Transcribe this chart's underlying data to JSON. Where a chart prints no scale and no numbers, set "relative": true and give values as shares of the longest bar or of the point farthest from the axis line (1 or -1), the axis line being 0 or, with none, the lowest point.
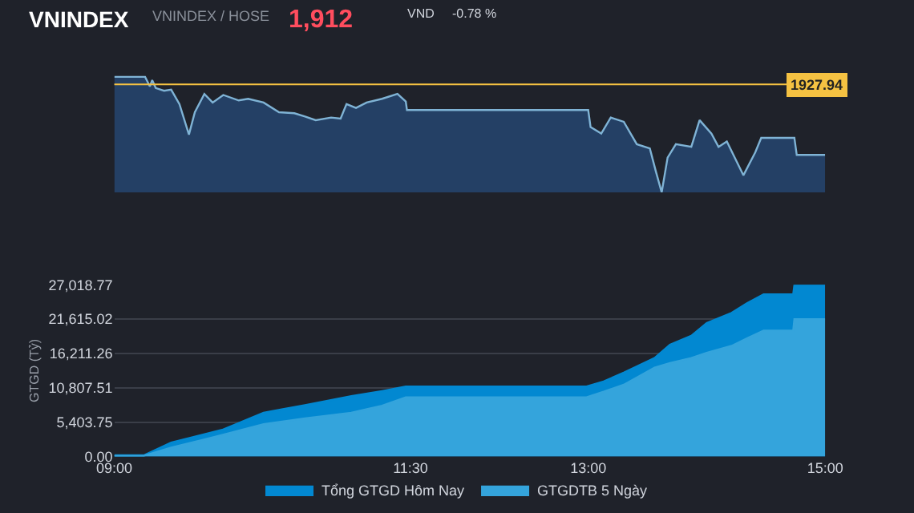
{
  "chart_data": [
    {
      "type": "area",
      "title": "VNINDEX",
      "subtitle": "VNINDEX / HOSE",
      "annotations": [
        "1,912",
        "VND",
        "-0.78 %",
        "1927.94"
      ],
      "relative": true,
      "tick_labels": false,
      "xlim": [
        9,
        15
      ],
      "x": [
        9.0,
        9.26,
        9.3,
        9.32,
        9.35,
        9.42,
        9.48,
        9.55,
        9.63,
        9.68,
        9.76,
        9.83,
        9.92,
        10.05,
        10.13,
        10.26,
        10.39,
        10.52,
        10.61,
        10.7,
        10.83,
        10.91,
        10.96,
        11.04,
        11.13,
        11.26,
        11.39,
        11.46,
        11.47,
        13.0,
        13.02,
        13.11,
        13.19,
        13.3,
        13.41,
        13.52,
        13.57,
        13.62,
        13.67,
        13.74,
        13.87,
        13.94,
        14.04,
        14.1,
        14.17,
        14.31,
        14.41,
        14.46,
        14.74,
        14.76,
        15.0
      ],
      "color": "#7fb3d5",
      "values": [
        1.0,
        1.0,
        0.917,
        0.972,
        0.903,
        0.88,
        0.889,
        0.764,
        0.5,
        0.694,
        0.852,
        0.778,
        0.843,
        0.796,
        0.81,
        0.778,
        0.694,
        0.685,
        0.657,
        0.625,
        0.648,
        0.639,
        0.764,
        0.731,
        0.778,
        0.81,
        0.852,
        0.787,
        0.713,
        0.713,
        0.565,
        0.509,
        0.648,
        0.611,
        0.417,
        0.38,
        0.185,
        0.0,
        0.301,
        0.417,
        0.394,
        0.625,
        0.509,
        0.394,
        0.44,
        0.148,
        0.347,
        0.472,
        0.472,
        0.324,
        0.324
      ],
      "ref_lines": [
        {
          "axis": "y",
          "value": 0.935,
          "color": "#f5c242"
        }
      ]
    },
    {
      "type": "area",
      "ylabel": "GTGD (Tỷ)",
      "xlim": [
        9,
        15
      ],
      "ylim": [
        0,
        27018.77
      ],
      "grid": "y",
      "legend": "bottom",
      "xticks": [
        {
          "value": 9,
          "label": "09:00"
        },
        {
          "value": 11.5,
          "label": "11:30"
        },
        {
          "value": 13,
          "label": "13:00"
        },
        {
          "value": 15,
          "label": "15:00"
        }
      ],
      "yticks": [
        {
          "value": 0,
          "label": "0.00"
        },
        {
          "value": 5403.75,
          "label": "5,403.75"
        },
        {
          "value": 10807.51,
          "label": "10,807.51"
        },
        {
          "value": 16211.26,
          "label": "16,211.26"
        },
        {
          "value": 21615.02,
          "label": "21,615.02"
        },
        {
          "value": 27018.77,
          "label": "27,018.77"
        }
      ],
      "x": [
        9.0,
        9.25,
        9.26,
        9.48,
        9.91,
        10.26,
        10.61,
        11.0,
        11.26,
        11.46,
        12.98,
        13.13,
        13.3,
        13.56,
        13.69,
        13.87,
        14.0,
        14.21,
        14.34,
        14.48,
        14.73,
        14.74,
        15.0
      ],
      "series": [
        {
          "name": "Tổng GTGD Hôm Nay",
          "color": "#0288d1",
          "values": [
            200,
            200,
            300,
            2200,
            4200,
            6900,
            8100,
            9500,
            10300,
            11000,
            11000,
            11800,
            13200,
            15500,
            17600,
            19000,
            21000,
            22600,
            24100,
            25500,
            25500,
            27000,
            27000
          ]
        },
        {
          "name": "GTGDTB 5 Ngày",
          "color": "#34a4dc",
          "values": [
            100,
            100,
            200,
            1400,
            3400,
            5100,
            6000,
            6900,
            8000,
            9300,
            9300,
            10200,
            11300,
            14000,
            14700,
            15500,
            16300,
            17400,
            18600,
            19800,
            19800,
            21600,
            21600
          ]
        }
      ]
    }
  ]
}
